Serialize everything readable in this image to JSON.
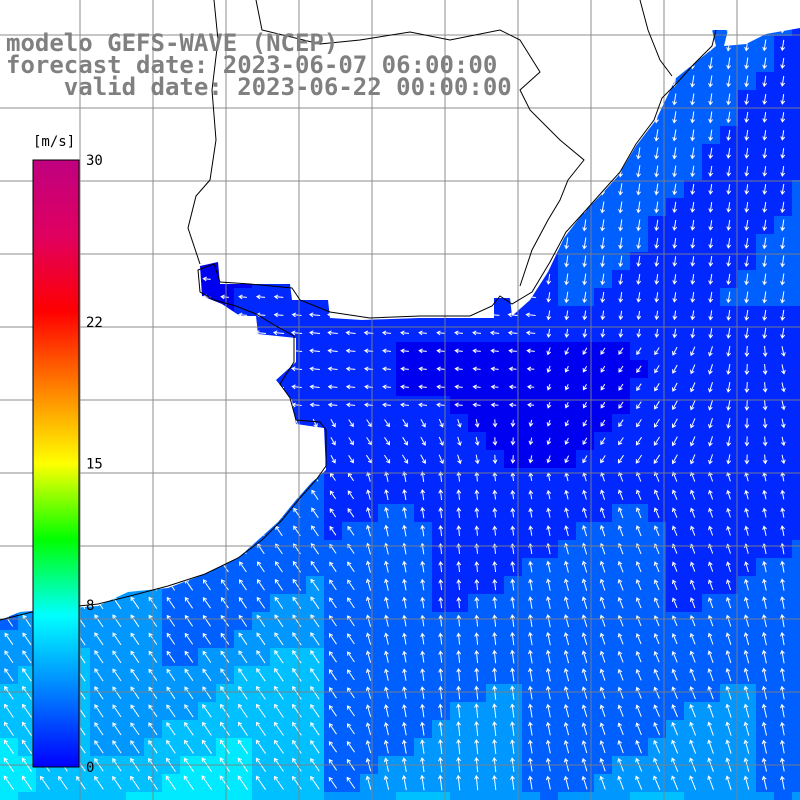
{
  "title": {
    "line1": "modelo GEFS-WAVE (NCEP)",
    "line2": "forecast date: 2023-06-07 06:00:00",
    "line3": "    valid date: 2023-06-22 00:00:00"
  },
  "colorbar": {
    "unit": "[m/s]",
    "min": 0,
    "max": 30,
    "ticks": [
      {
        "value": 30,
        "label": "30"
      },
      {
        "value": 22,
        "label": "22"
      },
      {
        "value": 15,
        "label": "15"
      },
      {
        "value": 8,
        "label": "8"
      },
      {
        "value": 0,
        "label": "0"
      }
    ],
    "colors": [
      "#0000ff",
      "#0080ff",
      "#00ffff",
      "#00ff00",
      "#ffff00",
      "#ff8000",
      "#ff0000",
      "#e00060",
      "#c00080"
    ]
  },
  "map_data": {
    "field": "wind speed",
    "land_color": "#ffffff",
    "grid_color": "#808080",
    "arrow_color": "#ffffff",
    "coast_color": "#000000"
  }
}
